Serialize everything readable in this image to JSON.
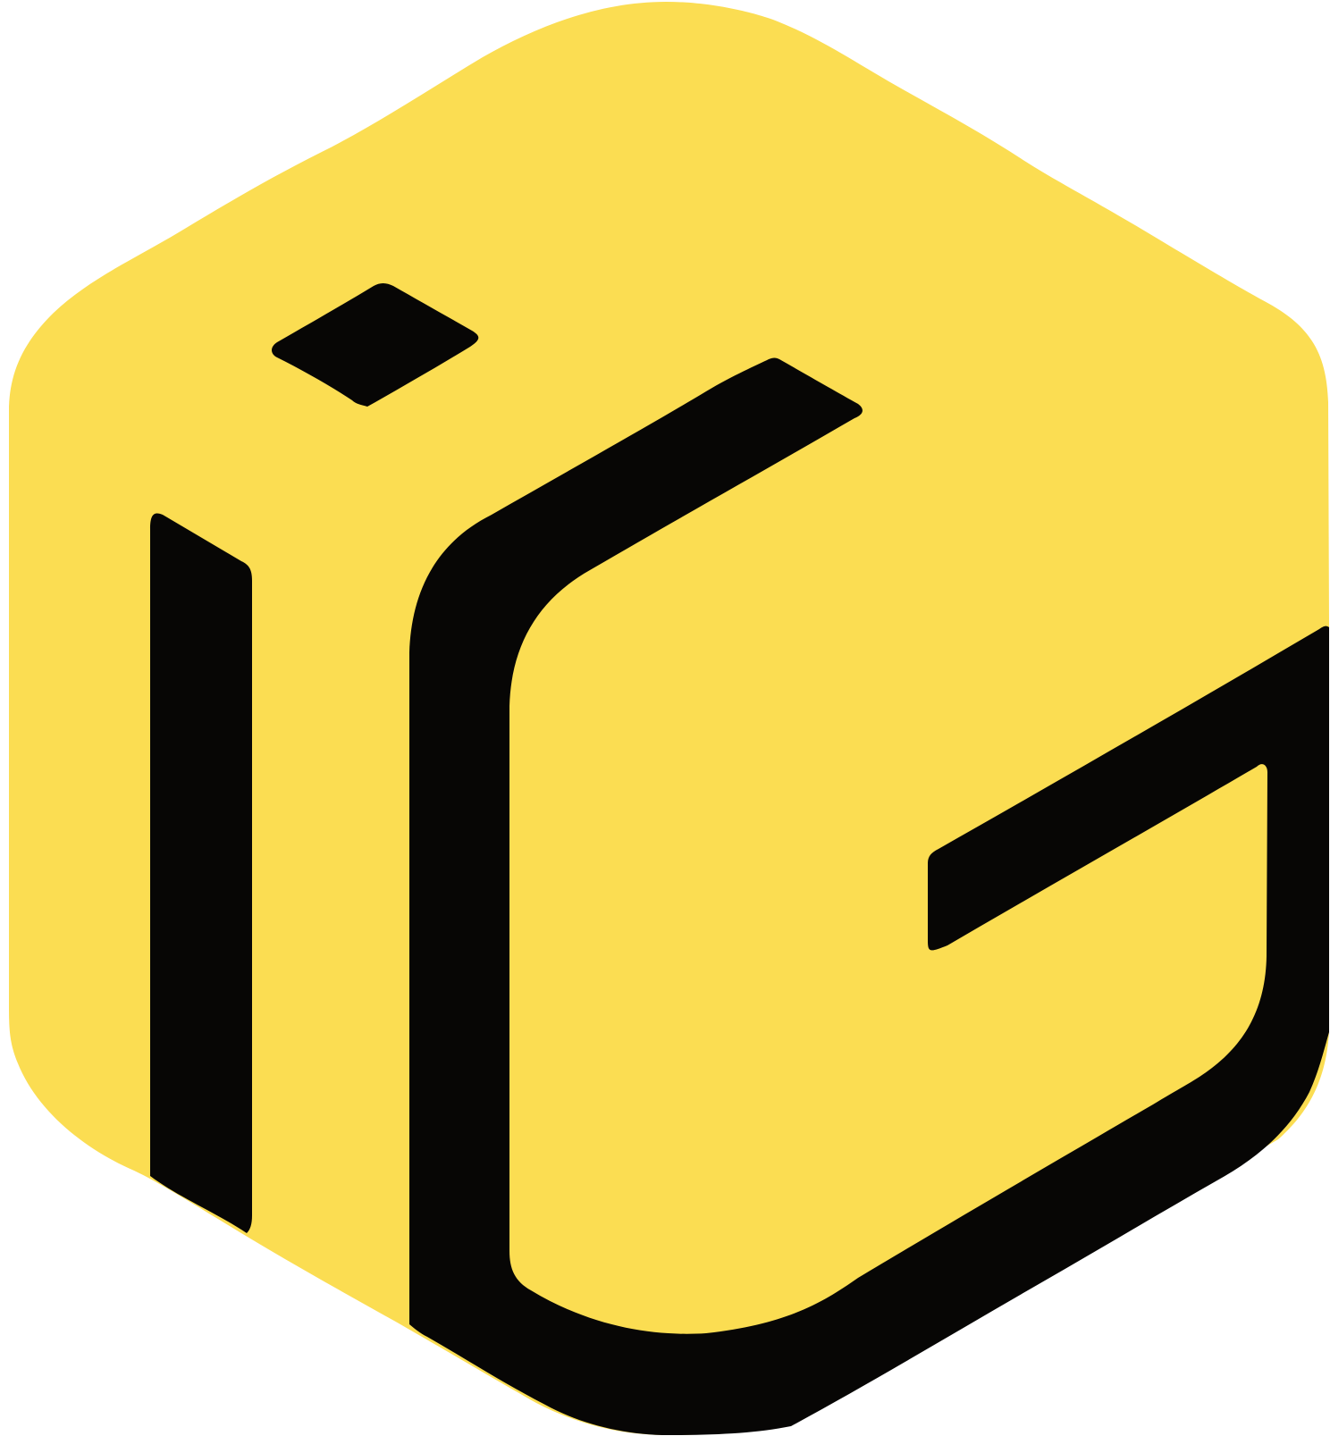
{
  "logo": {
    "description_name": "hexagon-cube-logo",
    "colors": {
      "background": "#ffffff",
      "hexagon_fill": "#FBDD52",
      "mark_fill": "#070605"
    }
  }
}
